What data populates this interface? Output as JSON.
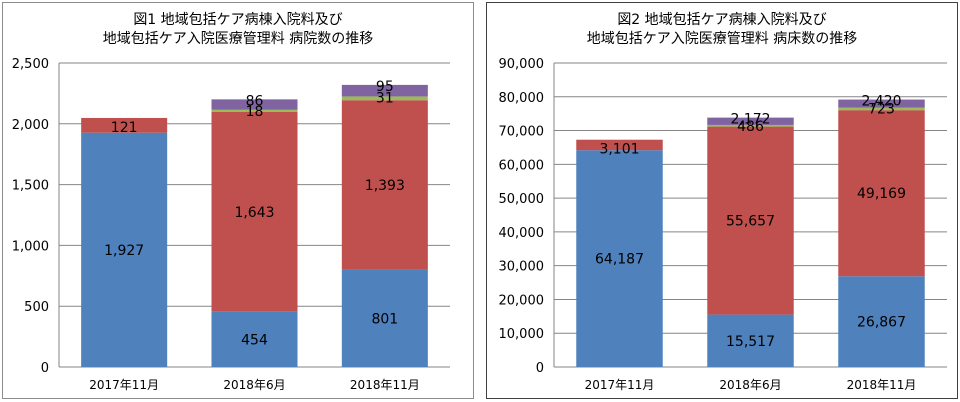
{
  "charts": [
    {
      "title_line1": "図1 地域包括ケア病棟入院料及び",
      "title_line2": "地域包括ケア入院医療管理料 病院数の推移"
    },
    {
      "title_line1": "図2 地域包括ケア病棟入院料及び",
      "title_line2": "地域包括ケア入院医療管理料 病床数の推移"
    }
  ],
  "chart_data": [
    {
      "type": "bar",
      "stacked": true,
      "title": "図1 地域包括ケア病棟入院料及び 地域包括ケア入院医療管理料 病院数の推移",
      "categories": [
        "2017年11月",
        "2018年6月",
        "2018年11月"
      ],
      "ylim": [
        0,
        2500
      ],
      "yticks": [
        "0",
        "500",
        "1,000",
        "1,500",
        "2,000",
        "2,500"
      ],
      "grid": true,
      "legend": "none",
      "series": [
        {
          "color": "#4f81bd",
          "values": [
            1927,
            454,
            801
          ],
          "labels": [
            "1,927",
            "454",
            "801"
          ],
          "label_color": "#000000"
        },
        {
          "color": "#c0504d",
          "values": [
            121,
            1643,
            1393
          ],
          "labels": [
            "121",
            "1,643",
            "1,393"
          ],
          "label_color": "#000000"
        },
        {
          "color": "#9bbb59",
          "values": [
            0,
            18,
            31
          ],
          "labels": [
            "",
            "18",
            "31"
          ],
          "label_color": "#000000"
        },
        {
          "color": "#8064a2",
          "values": [
            0,
            86,
            95
          ],
          "labels": [
            "",
            "86",
            "95"
          ],
          "label_color": "#000000"
        }
      ]
    },
    {
      "type": "bar",
      "stacked": true,
      "title": "図2 地域包括ケア病棟入院料及び 地域包括ケア入院医療管理料 病床数の推移",
      "categories": [
        "2017年11月",
        "2018年6月",
        "2018年11月"
      ],
      "ylim": [
        0,
        90000
      ],
      "yticks": [
        "0",
        "10,000",
        "20,000",
        "30,000",
        "40,000",
        "50,000",
        "60,000",
        "70,000",
        "80,000",
        "90,000"
      ],
      "grid": true,
      "legend": "none",
      "series": [
        {
          "color": "#4f81bd",
          "values": [
            64187,
            15517,
            26867
          ],
          "labels": [
            "64,187",
            "15,517",
            "26,867"
          ],
          "label_color": "#000000"
        },
        {
          "color": "#c0504d",
          "values": [
            3101,
            55657,
            49169
          ],
          "labels": [
            "3,101",
            "55,657",
            "49,169"
          ],
          "label_color": "#000000"
        },
        {
          "color": "#9bbb59",
          "values": [
            0,
            486,
            723
          ],
          "labels": [
            "",
            "486",
            "723"
          ],
          "label_color": "#000000"
        },
        {
          "color": "#8064a2",
          "values": [
            0,
            2172,
            2420
          ],
          "labels": [
            "",
            "2,172",
            "2,420"
          ],
          "label_color": "#000000"
        }
      ]
    }
  ]
}
